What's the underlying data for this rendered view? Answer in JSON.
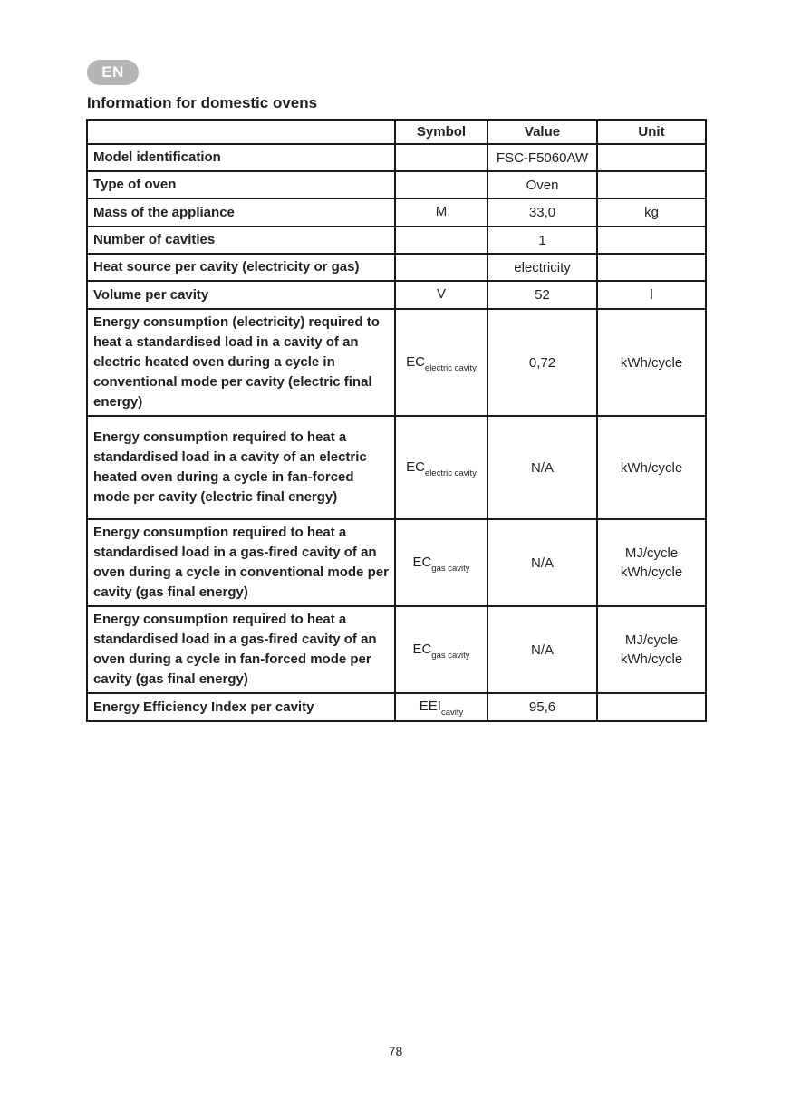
{
  "page": {
    "language_badge": "EN",
    "title": "Information for domestic ovens",
    "page_number": "78"
  },
  "colors": {
    "badge_background": "#b5b5b5",
    "badge_text": "#ffffff",
    "table_border": "#1a1a1a",
    "text": "#231f20"
  },
  "table": {
    "headers": {
      "label": "",
      "symbol": "Symbol",
      "value": "Value",
      "unit": "Unit"
    },
    "rows": [
      {
        "label": "Model identification",
        "symbol": "",
        "symbol_sub": "",
        "value": "FSC-F5060AW",
        "unit": ""
      },
      {
        "label": "Type of oven",
        "symbol": "",
        "symbol_sub": "",
        "value": "Oven",
        "unit": ""
      },
      {
        "label": "Mass of the appliance",
        "symbol": "M",
        "symbol_sub": "",
        "value": "33,0",
        "unit": "kg"
      },
      {
        "label": "Number of cavities",
        "symbol": "",
        "symbol_sub": "",
        "value": "1",
        "unit": ""
      },
      {
        "label": "Heat source per cavity (electricity or gas)",
        "symbol": "",
        "symbol_sub": "",
        "value": "electricity",
        "unit": ""
      },
      {
        "label": "Volume per cavity",
        "symbol": "V",
        "symbol_sub": "",
        "value": "52",
        "unit": "l"
      },
      {
        "label": "Energy consumption (electricity) required to heat a standardised load in a cavity of an electric heated oven during a cycle in conventional mode per cavity (electric final energy)",
        "symbol": "EC",
        "symbol_sub": "electric cavity",
        "value": "0,72",
        "unit": "kWh/cycle"
      },
      {
        "label": "Energy consumption required to heat a standardised load in a cavity of an electric heated oven during a cycle in fan-forced mode per cavity (electric final energy)",
        "symbol": "EC",
        "symbol_sub": "electric cavity",
        "value": "N/A",
        "unit": "kWh/cycle"
      },
      {
        "label": "Energy consumption required to heat a standardised load in a gas-fired cavity of an oven during a cycle in conventional mode per cavity (gas final energy)",
        "symbol": "EC",
        "symbol_sub": "gas cavity",
        "value": "N/A",
        "unit": "MJ/cycle\nkWh/cycle"
      },
      {
        "label": "Energy consumption required to heat a standardised load in a gas-fired cavity of an oven during a cycle in fan-forced mode per cavity (gas final energy)",
        "symbol": "EC",
        "symbol_sub": "gas cavity",
        "value": "N/A",
        "unit": "MJ/cycle\nkWh/cycle"
      },
      {
        "label": "Energy Efficiency Index per cavity",
        "symbol": "EEI",
        "symbol_sub": "cavity",
        "value": "95,6",
        "unit": ""
      }
    ]
  }
}
